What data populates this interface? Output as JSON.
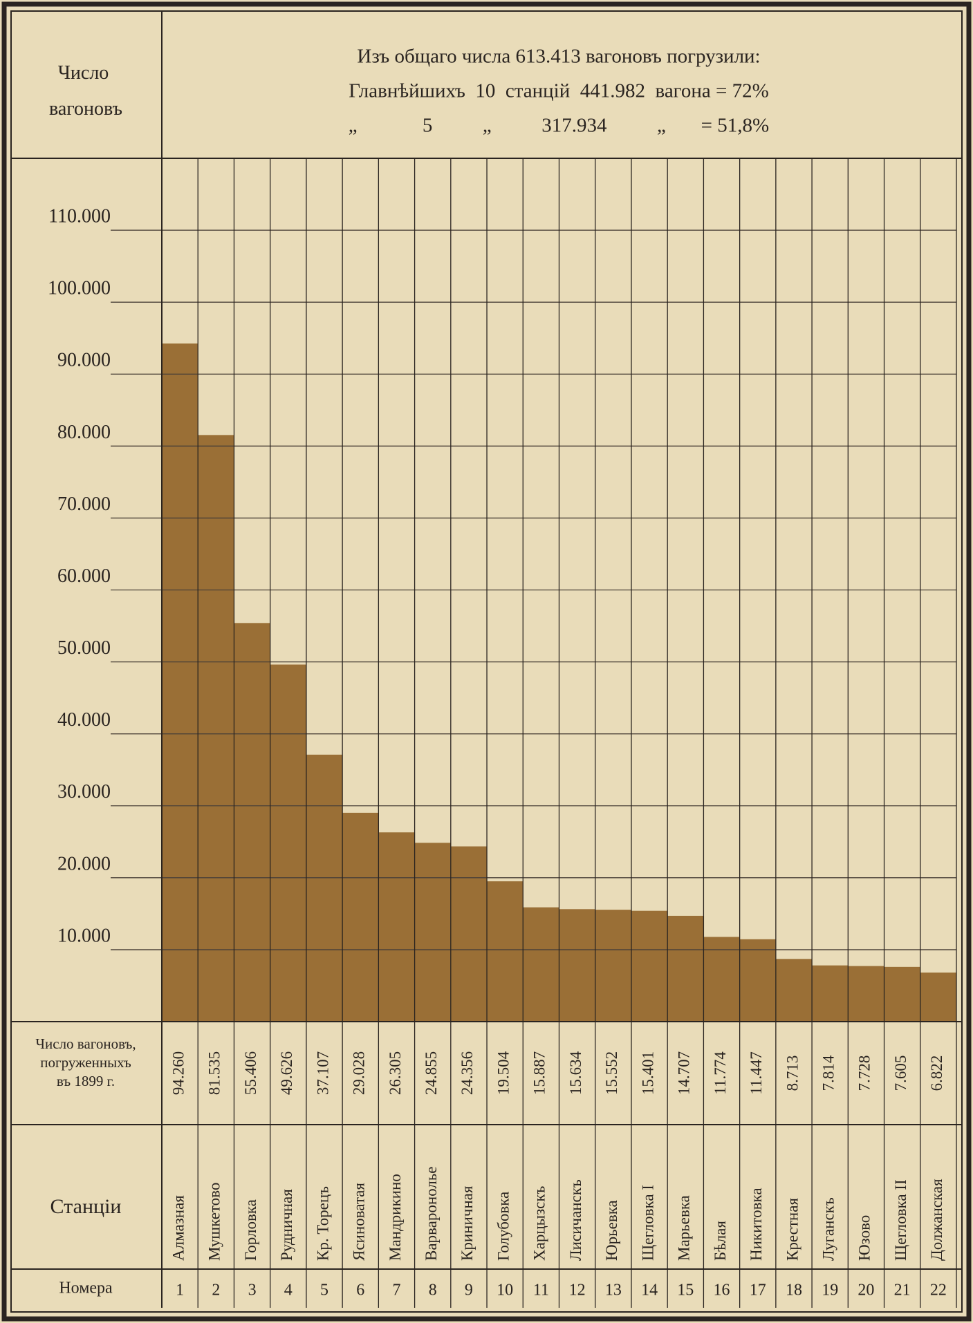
{
  "chart_data": {
    "type": "bar",
    "title_lines": [
      "Изъ общаго числа 613.413 вагоновъ погрузили:",
      "Главнѣйшихъ  10  станцій  441.982  вагона = 72%",
      "„             5          „          317.934          „       = 51,8%"
    ],
    "y_axis_label": "Число вагоновъ",
    "values_row_label": "Число вагоновъ, погруженныхъ въ 1899 г.",
    "categories_row_label": "Станціи",
    "numbers_row_label": "Номера",
    "categories": [
      "Алмазная",
      "Мушкетово",
      "Горловка",
      "Рудничная",
      "Кр. Торецъ",
      "Ясиноватая",
      "Мандрикино",
      "Варваронолье",
      "Криничная",
      "Голубовка",
      "Харцызскъ",
      "Лисичанскъ",
      "Юрьевка",
      "Щегловка I",
      "Марьевка",
      "Бѣлая",
      "Никитовка",
      "Крестная",
      "Луганскъ",
      "Юзово",
      "Щегловка II",
      "Должанская"
    ],
    "numbers": [
      1,
      2,
      3,
      4,
      5,
      6,
      7,
      8,
      9,
      10,
      11,
      12,
      13,
      14,
      15,
      16,
      17,
      18,
      19,
      20,
      21,
      22
    ],
    "values": [
      94260,
      81535,
      55406,
      49626,
      37107,
      29028,
      26305,
      24855,
      24356,
      19504,
      15887,
      15634,
      15552,
      15401,
      14707,
      11774,
      11447,
      8713,
      7814,
      7728,
      7605,
      6822
    ],
    "value_labels": [
      "94.260",
      "81.535",
      "55.406",
      "49.626",
      "37.107",
      "29.028",
      "26.305",
      "24.855",
      "24.356",
      "19.504",
      "15.887",
      "15.634",
      "15.552",
      "15.401",
      "14.707",
      "11.774",
      "11.447",
      "8.713",
      "7.814",
      "7.728",
      "7.605",
      "6.822"
    ],
    "color": "#9a6f36",
    "ylim": [
      0,
      120000
    ],
    "yticks": [
      {
        "value": 10000,
        "label": "10.000"
      },
      {
        "value": 20000,
        "label": "20.000"
      },
      {
        "value": 30000,
        "label": "30.000"
      },
      {
        "value": 40000,
        "label": "40.000"
      },
      {
        "value": 50000,
        "label": "50.000"
      },
      {
        "value": 60000,
        "label": "60.000"
      },
      {
        "value": 70000,
        "label": "70.000"
      },
      {
        "value": 80000,
        "label": "80.000"
      },
      {
        "value": 90000,
        "label": "90.000"
      },
      {
        "value": 100000,
        "label": "100.000"
      },
      {
        "value": 110000,
        "label": "110.000"
      }
    ],
    "grid": true
  }
}
